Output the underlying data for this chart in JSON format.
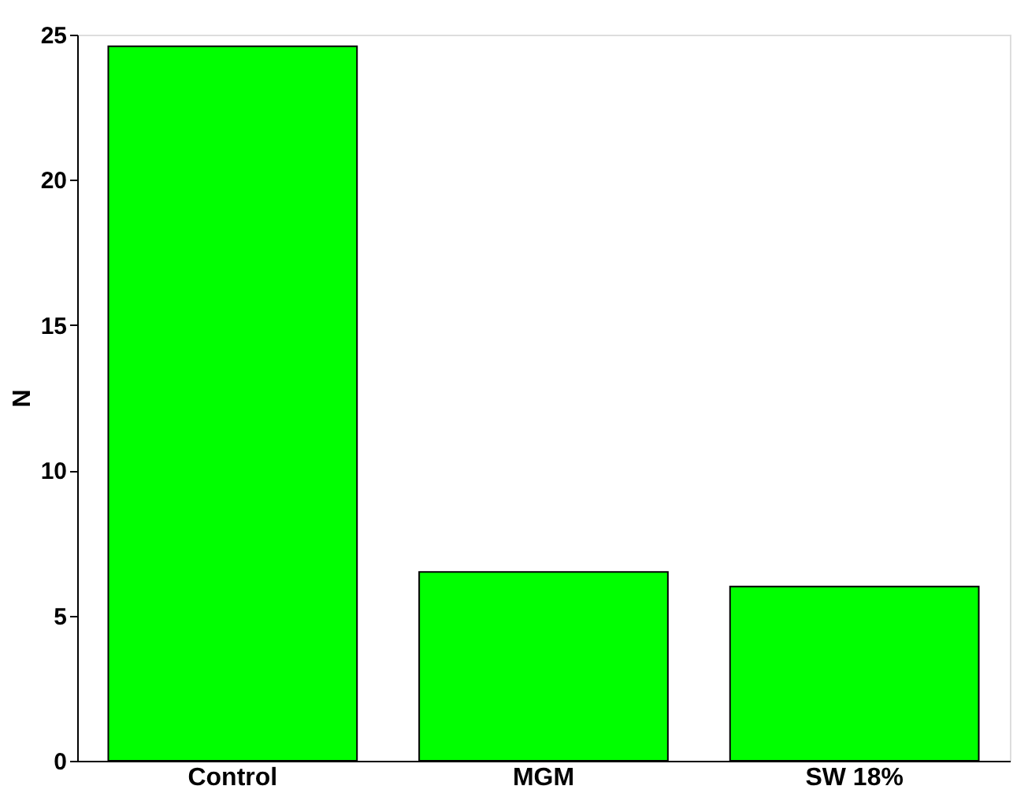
{
  "chart_data": {
    "type": "bar",
    "ylabel": "N",
    "categories": [
      "Control",
      "MGM",
      "SW 18%"
    ],
    "values": [
      24.6,
      6.5,
      6.0
    ],
    "color": "#00ff00",
    "ylim": [
      0,
      25
    ],
    "yticks": [
      0,
      5,
      10,
      15,
      20,
      25
    ],
    "grid": false
  }
}
